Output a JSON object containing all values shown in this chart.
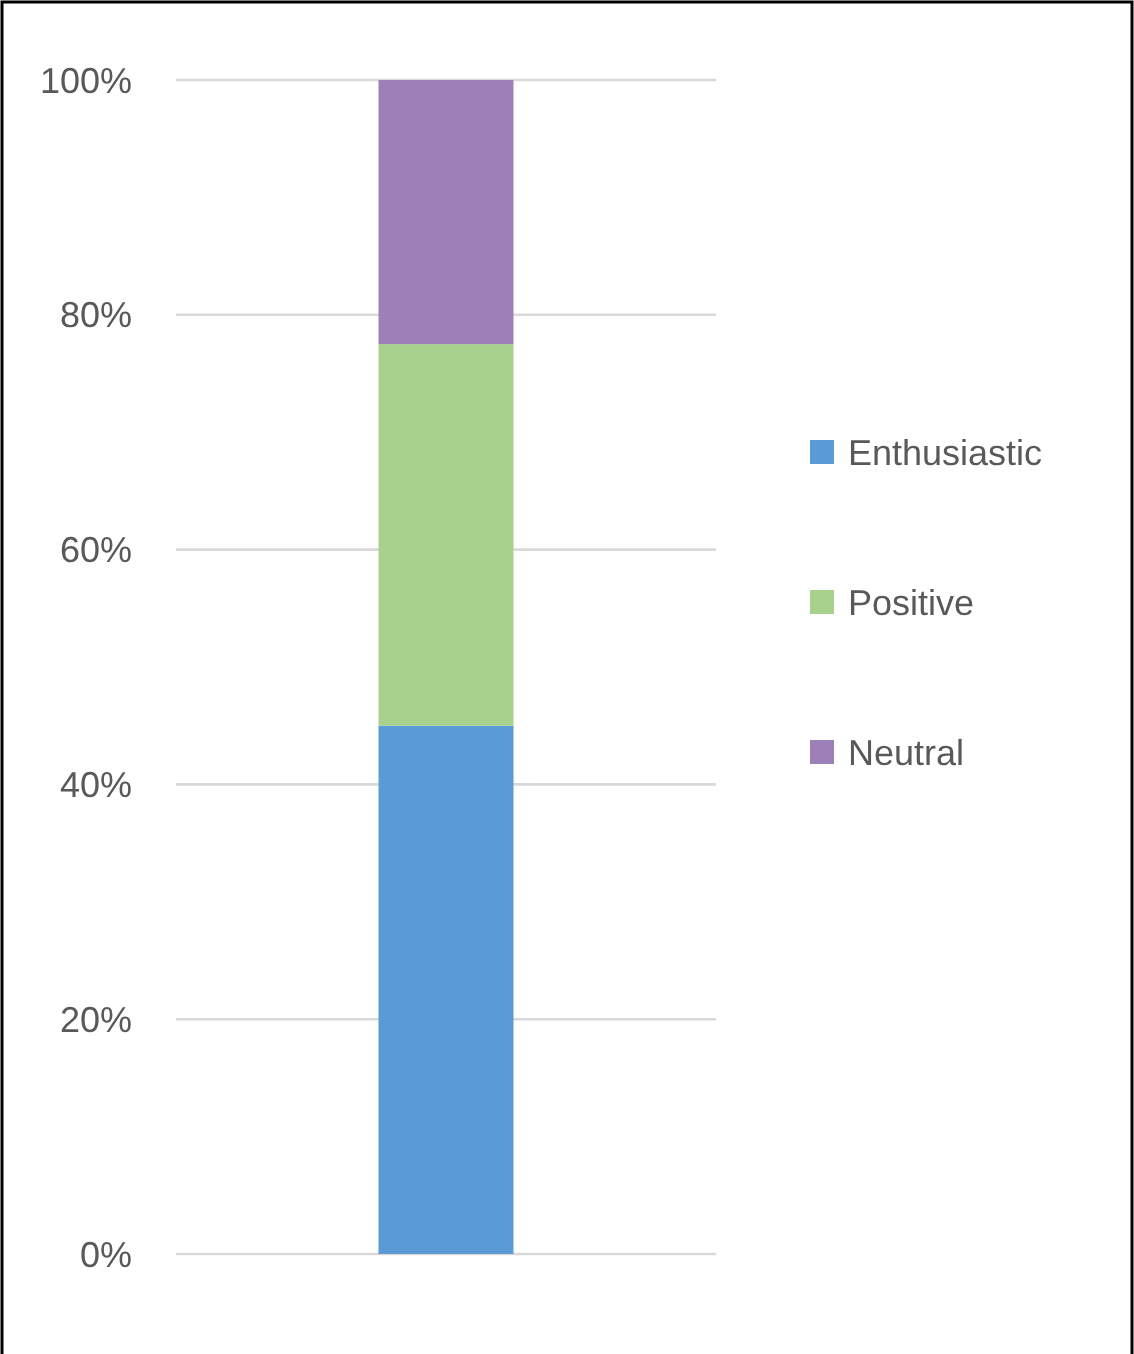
{
  "chart_data": {
    "type": "bar",
    "stacked": true,
    "categories": [
      null
    ],
    "series": [
      {
        "name": "Enthusiastic",
        "color": "#5b9bd5",
        "values": [
          45
        ]
      },
      {
        "name": "Positive",
        "color": "#a9d18e",
        "values": [
          32.5
        ]
      },
      {
        "name": "Neutral",
        "color": "#9e80b8",
        "values": [
          22.5
        ]
      }
    ],
    "ylim": [
      0,
      100
    ],
    "yticks": [
      {
        "value": 0,
        "label": "0%"
      },
      {
        "value": 20,
        "label": "20%"
      },
      {
        "value": 40,
        "label": "40%"
      },
      {
        "value": 60,
        "label": "60%"
      },
      {
        "value": 80,
        "label": "80%"
      },
      {
        "value": 100,
        "label": "100%"
      }
    ],
    "grid": "y",
    "legend": "right",
    "tick_labels": "y"
  }
}
